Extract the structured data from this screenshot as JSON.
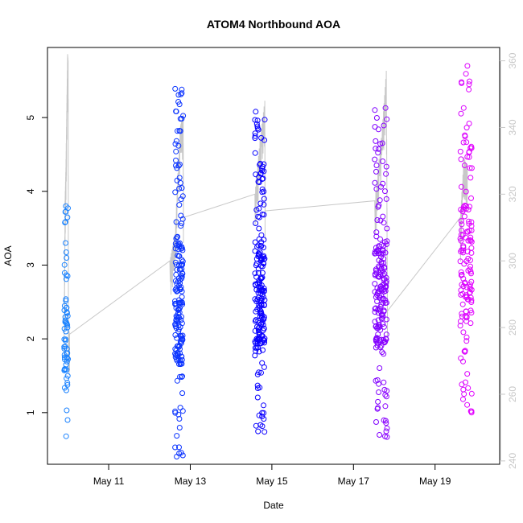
{
  "chart_data": {
    "type": "scatter",
    "title": "ATOM4 Northbound AOA",
    "xlabel": "Date",
    "ylabel": "AOA",
    "x_ticks": [
      "May 11",
      "May 13",
      "May 15",
      "May 17",
      "May 19"
    ],
    "y_ticks": [
      "1",
      "2",
      "3",
      "4",
      "5"
    ],
    "y2_ticks": [
      "240",
      "260",
      "280",
      "300",
      "320",
      "340",
      "360"
    ],
    "xlim": [
      "2021-05-09T12:00",
      "2021-05-20T14:00"
    ],
    "ylim": [
      0.3,
      5.95
    ],
    "y2lim": [
      239,
      364
    ],
    "grid": false,
    "legend": "none",
    "colors": {
      "points_start": "#1e90ff",
      "points_middle": "#0000ff",
      "points_end": "#ff00ff",
      "line": "#c8c8c8",
      "axis": "#000000",
      "right_axis": "#c8c8c8"
    },
    "series": [
      {
        "kind": "points",
        "color_gradient": "blue-to-magenta",
        "groups": [
          {
            "x_start": "2021-05-09T21:50",
            "x_end": "2021-05-10T00:10",
            "y_min": 0.67,
            "y_max": 3.8,
            "n": 60,
            "highlights": [
              {
                "x": "2021-05-09T22:50",
                "y": 3.8
              },
              {
                "x": "2021-05-09T22:30",
                "y": 3.72
              },
              {
                "x": "2021-05-09T22:40",
                "y": 3.3
              },
              {
                "x": "2021-05-09T23:50",
                "y": 0.9
              },
              {
                "x": "2021-05-09T23:00",
                "y": 0.68
              }
            ]
          },
          {
            "x_start": "2021-05-12T15:00",
            "x_end": "2021-05-12T19:50",
            "y_min": 0.4,
            "y_max": 5.4,
            "n": 180,
            "highlights": [
              {
                "x": "2021-05-12T19:00",
                "y": 5.38
              },
              {
                "x": "2021-05-12T19:00",
                "y": 5.33
              },
              {
                "x": "2021-05-12T17:40",
                "y": 5.18
              },
              {
                "x": "2021-05-12T19:40",
                "y": 0.42
              }
            ]
          },
          {
            "x_start": "2021-05-14T14:00",
            "x_end": "2021-05-14T19:50",
            "y_min": 0.73,
            "y_max": 5.1,
            "n": 200,
            "highlights": [
              {
                "x": "2021-05-14T14:30",
                "y": 5.08
              },
              {
                "x": "2021-05-14T19:40",
                "y": 0.74
              }
            ]
          },
          {
            "x_start": "2021-05-17T12:30",
            "x_end": "2021-05-17T19:50",
            "y_min": 0.67,
            "y_max": 5.15,
            "n": 190,
            "highlights": [
              {
                "x": "2021-05-17T18:50",
                "y": 5.13
              },
              {
                "x": "2021-05-17T13:00",
                "y": 4.68
              },
              {
                "x": "2021-05-17T13:00",
                "y": 4.58
              },
              {
                "x": "2021-05-17T19:40",
                "y": 0.67
              }
            ]
          },
          {
            "x_start": "2021-05-19T14:50",
            "x_end": "2021-05-19T21:40",
            "y_min": 0.98,
            "y_max": 5.7,
            "n": 140,
            "highlights": [
              {
                "x": "2021-05-19T19:00",
                "y": 5.7
              },
              {
                "x": "2021-05-19T20:00",
                "y": 5.45
              },
              {
                "x": "2021-05-19T21:30",
                "y": 1.0
              }
            ]
          }
        ]
      },
      {
        "kind": "line",
        "axis": "right",
        "path": [
          {
            "x": "2021-05-09T21:50",
            "y": 280
          },
          {
            "x": "2021-05-09T22:20",
            "y": 318
          },
          {
            "x": "2021-05-09T22:50",
            "y": 328
          },
          {
            "x": "2021-05-09T23:20",
            "y": 345
          },
          {
            "x": "2021-05-09T23:50",
            "y": 362
          },
          {
            "x": "2021-05-10T00:10",
            "y": 360
          },
          {
            "x": "2021-05-10T00:20",
            "y": 280
          },
          {
            "x": "2021-05-10T01:00",
            "y": 278
          },
          {
            "x": "2021-05-12T12:00",
            "y": 300
          },
          {
            "x": "2021-05-12T15:00",
            "y": 308
          },
          {
            "x": "2021-05-12T18:00",
            "y": 340
          },
          {
            "x": "2021-05-12T19:50",
            "y": 344
          },
          {
            "x": "2021-05-12T20:00",
            "y": 313
          },
          {
            "x": "2021-05-14T14:00",
            "y": 320
          },
          {
            "x": "2021-05-14T17:00",
            "y": 336
          },
          {
            "x": "2021-05-14T19:50",
            "y": 348
          },
          {
            "x": "2021-05-14T20:00",
            "y": 315
          },
          {
            "x": "2021-05-17T12:30",
            "y": 318
          },
          {
            "x": "2021-05-17T17:00",
            "y": 340
          },
          {
            "x": "2021-05-17T19:20",
            "y": 357
          },
          {
            "x": "2021-05-17T20:00",
            "y": 285
          },
          {
            "x": "2021-05-19T14:50",
            "y": 313
          },
          {
            "x": "2021-05-19T17:00",
            "y": 331
          },
          {
            "x": "2021-05-19T19:00",
            "y": 328
          }
        ]
      }
    ]
  }
}
